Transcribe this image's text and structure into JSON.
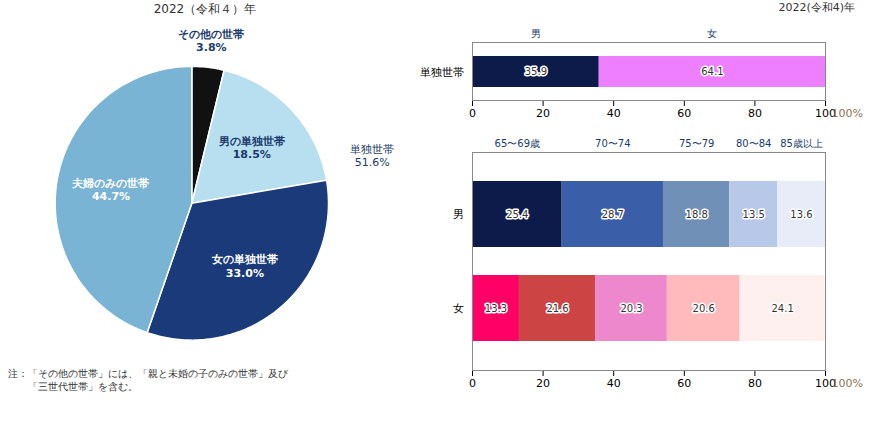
{
  "chart_data": [
    {
      "type": "pie",
      "title": "2022（令和４）年",
      "categories": [
        "その他の世帯",
        "男の単独世帯",
        "女の単独世帯",
        "夫婦のみの世帯"
      ],
      "values": [
        3.8,
        18.5,
        33.0,
        44.7
      ],
      "value_labels": [
        "3.8%",
        "18.5%",
        "33.0%",
        "44.7%"
      ],
      "colors": [
        "#111111",
        "#b8dff0",
        "#1a3a7a",
        "#7ab4d4"
      ],
      "data_labels": true,
      "annotations": [
        "単独世帯\n51.6%",
        "注：「その他の世帯」には、「親と未婚の子のみの世帯」及び\n　　「三世代世帯」を含む。"
      ]
    },
    {
      "type": "bar",
      "title": "2022(令和4)年",
      "orientation": "horizontal",
      "stacked": true,
      "categories": [
        "単独世帯"
      ],
      "series": [
        {
          "name": "男",
          "color": "#0d1b4b",
          "values": [
            35.9
          ]
        },
        {
          "name": "女",
          "color": "#ee80ff",
          "values": [
            64.1
          ]
        }
      ],
      "xlabel": "100%",
      "xlim": [
        0,
        100
      ],
      "xticks": [
        0,
        20,
        40,
        60,
        80,
        100
      ],
      "data_labels": true,
      "grid": false
    },
    {
      "type": "bar",
      "orientation": "horizontal",
      "stacked": true,
      "categories": [
        "男",
        "女"
      ],
      "series": [
        {
          "name": "65〜69歳",
          "colors": [
            "#0d1b4b",
            "#ff0066"
          ],
          "values": [
            25.4,
            13.3
          ]
        },
        {
          "name": "70〜74",
          "colors": [
            "#3a5fa8",
            "#cc4444"
          ],
          "values": [
            28.7,
            21.6
          ]
        },
        {
          "name": "75〜79",
          "colors": [
            "#7090b8",
            "#ee88cc"
          ],
          "values": [
            18.8,
            20.3
          ]
        },
        {
          "name": "80〜84",
          "colors": [
            "#b8c8e8",
            "#ffbbbb"
          ],
          "values": [
            13.5,
            20.6
          ]
        },
        {
          "name": "85歳以上",
          "colors": [
            "#e8ecf8",
            "#fff0f0"
          ],
          "values": [
            13.6,
            24.1
          ]
        }
      ],
      "xlabel": "100%",
      "xlim": [
        0,
        100
      ],
      "xticks": [
        0,
        20,
        40,
        60,
        80,
        100
      ],
      "data_labels": true,
      "grid": false
    }
  ]
}
